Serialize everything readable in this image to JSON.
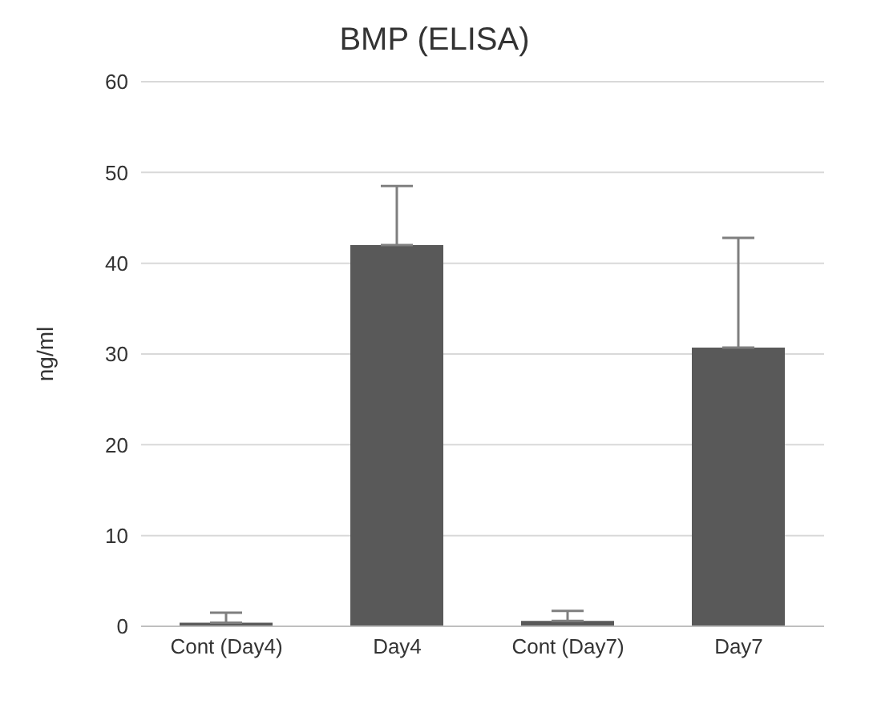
{
  "chart_data": {
    "type": "bar",
    "title": "BMP (ELISA)",
    "ylabel": "ng/ml",
    "categories": [
      "Cont (Day4)",
      "Day4",
      "Cont (Day7)",
      "Day7"
    ],
    "values": [
      0.4,
      42,
      0.6,
      30.7
    ],
    "errors": [
      [
        0.4,
        1.5
      ],
      [
        42,
        48.5
      ],
      [
        0.6,
        1.7
      ],
      [
        30.7,
        42.8
      ]
    ],
    "color": "#595959",
    "ylim": [
      0,
      60
    ],
    "yticks": [
      0,
      10,
      20,
      30,
      40,
      50,
      60
    ],
    "grid": "y"
  }
}
